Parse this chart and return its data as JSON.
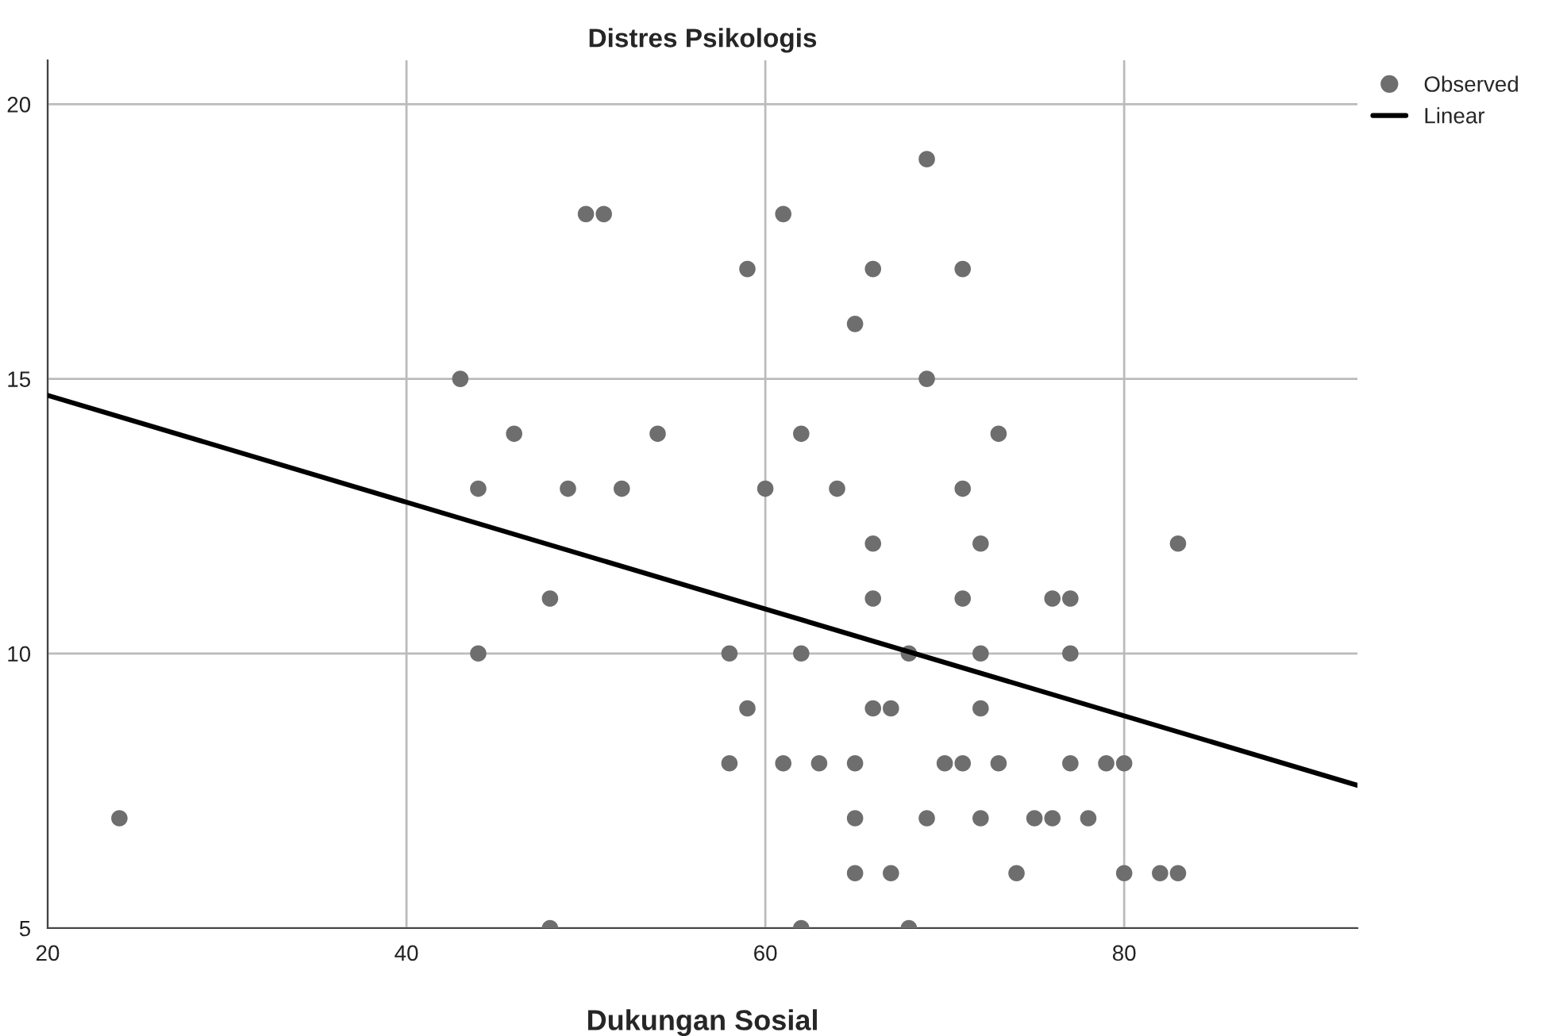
{
  "chart_data": {
    "type": "scatter",
    "title": "Distres Psikologis",
    "xlabel": "Dukungan Sosial",
    "xlim": [
      20,
      93
    ],
    "ylim": [
      5,
      20.8
    ],
    "xticks": [
      20,
      40,
      60,
      80
    ],
    "yticks": [
      5,
      10,
      15,
      20
    ],
    "grid": true,
    "legend": "top right",
    "series": [
      {
        "name": "Observed",
        "marker": "circle",
        "color": "#6e6e6e",
        "x": [
          24,
          43,
          44,
          44,
          46,
          48,
          48,
          49,
          50,
          51,
          52,
          54,
          58,
          58,
          59,
          59,
          60,
          61,
          61,
          62,
          62,
          62,
          63,
          64,
          65,
          65,
          65,
          65,
          66,
          66,
          66,
          66,
          67,
          67,
          68,
          68,
          69,
          69,
          69,
          70,
          71,
          71,
          71,
          71,
          72,
          72,
          72,
          72,
          73,
          73,
          74,
          75,
          76,
          76,
          77,
          77,
          77,
          78,
          79,
          80,
          80,
          82,
          83,
          83
        ],
        "values": [
          7,
          15,
          13,
          10,
          14,
          11,
          5,
          13,
          18,
          18,
          13,
          14,
          10,
          8,
          9,
          17,
          13,
          18,
          8,
          14,
          10,
          5,
          8,
          13,
          16,
          8,
          7,
          6,
          17,
          12,
          11,
          9,
          9,
          6,
          10,
          5,
          19,
          15,
          7,
          8,
          17,
          13,
          11,
          8,
          12,
          10,
          9,
          7,
          14,
          8,
          6,
          7,
          11,
          7,
          11,
          10,
          8,
          7,
          8,
          8,
          6,
          6,
          12,
          6
        ]
      },
      {
        "name": "Linear",
        "type": "line",
        "marker": "none",
        "color": "#000000",
        "x": [
          20,
          93
        ],
        "values": [
          14.7,
          7.6
        ]
      }
    ]
  }
}
